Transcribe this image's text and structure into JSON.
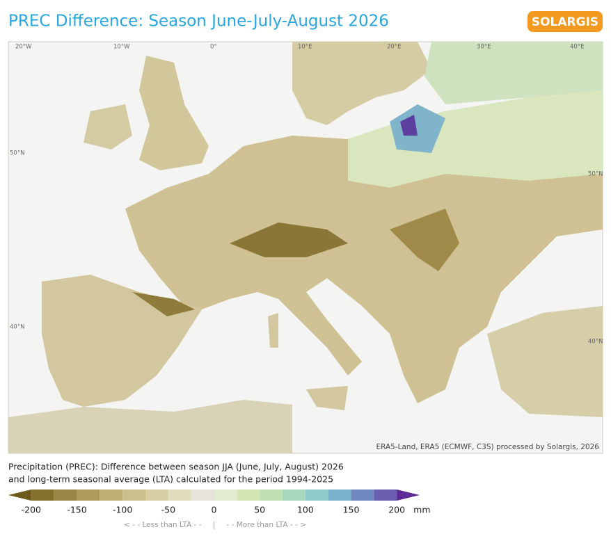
{
  "header": {
    "title": "PREC Difference: Season June-July-August 2026",
    "logo": "SOLARGIS"
  },
  "map": {
    "graticule_labels": [
      "20°W",
      "10°W",
      "0°",
      "10°E",
      "20°E",
      "30°E",
      "40°E",
      "50°N",
      "50°N",
      "40°N",
      "40°N"
    ],
    "attribution": "ERA5-Land, ERA5 (ECMWF, C3S) processed by Solargis, 2026"
  },
  "description": [
    "Precipitation (PREC): Difference between season JJA (June, July, August) 2026",
    "and long-term seasonal average (LTA) calculated for the period 1994-2025"
  ],
  "legend": {
    "range": [
      -225,
      225
    ],
    "ticks": [
      -200,
      -150,
      -100,
      -50,
      0,
      50,
      100,
      150,
      200
    ],
    "unit": "mm",
    "colors": [
      "#6e5a1c",
      "#85712e",
      "#9a8745",
      "#ad9c5e",
      "#beae74",
      "#ccbf8c",
      "#d8cea3",
      "#e2dbbb",
      "#e6e4d8",
      "#e3ebcf",
      "#d3e6b4",
      "#bfe0b0",
      "#a6d9bd",
      "#8ecdc9",
      "#79b3cb",
      "#6f8ac0",
      "#6a5eae",
      "#5b2a97"
    ],
    "notes": [
      "< - - Less than LTA - -",
      "|",
      "- - More than LTA - - >"
    ]
  }
}
